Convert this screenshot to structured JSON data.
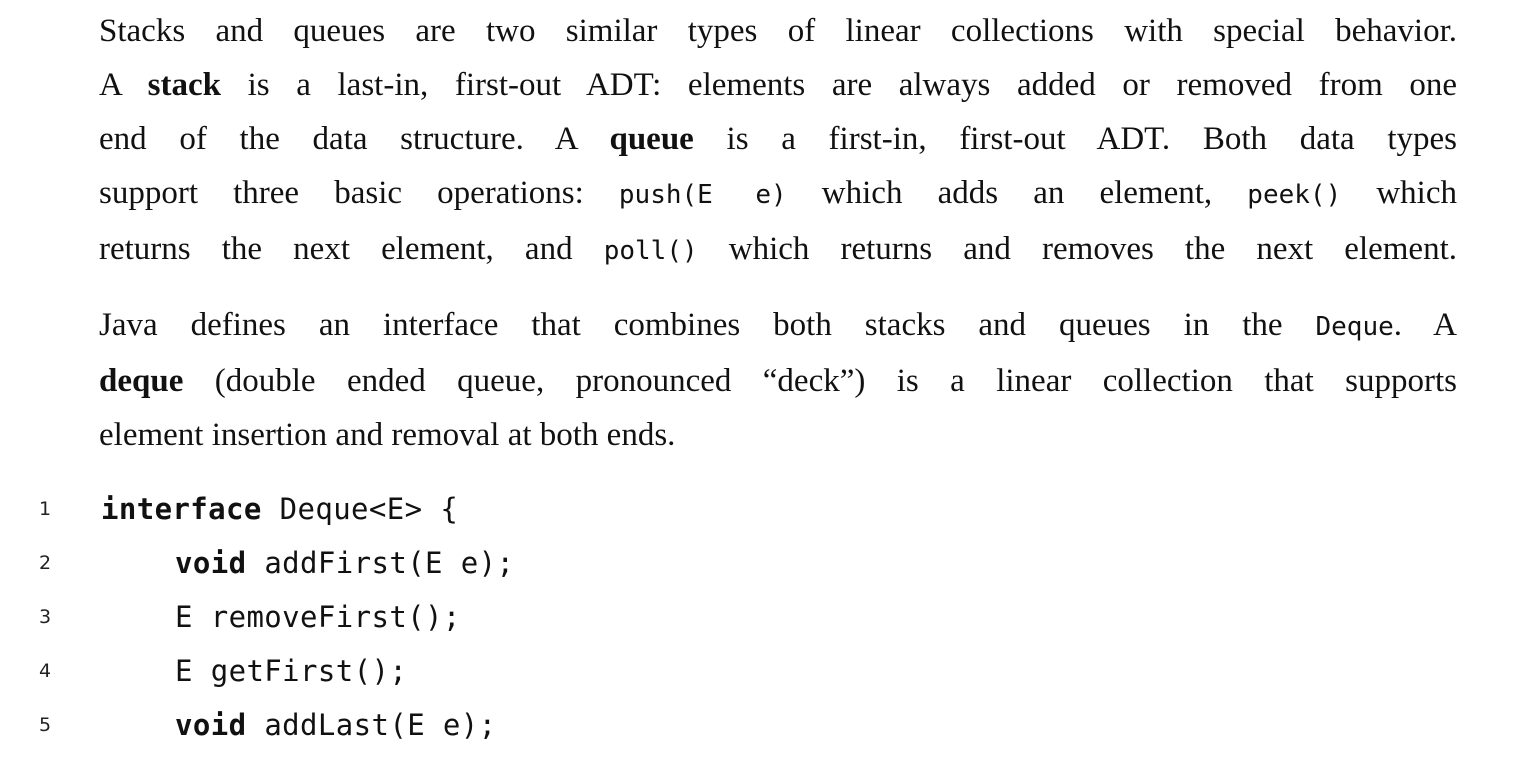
{
  "paragraph1": {
    "line1": "Stacks and queues are two similar types of linear collections with special behavior.",
    "line2_a": "A ",
    "line2_bold": "stack",
    "line2_b": " is a last-in, first-out ADT: elements are always added or removed from one",
    "line3_a": "end of the data structure.  A ",
    "line3_bold": "queue",
    "line3_b": " is a first-in, first-out ADT. Both data types",
    "line4_a": "support three basic operations: ",
    "line4_code1": "push(E e)",
    "line4_b": " which adds an element, ",
    "line4_code2": "peek()",
    "line4_c": " which",
    "line5_a": "returns the next element, and ",
    "line5_code": "poll()",
    "line5_b": " which returns and removes the next element."
  },
  "paragraph2": {
    "line1_a": "Java defines an interface that combines both stacks and queues in the ",
    "line1_code": "Deque",
    "line1_b": ".  A",
    "line2_bold": "deque",
    "line2_b": " (double ended queue, pronounced “deck”) is a linear collection that supports",
    "line3": "element insertion and removal at both ends."
  },
  "code_listing": [
    {
      "number": "1",
      "keyword": "interface",
      "rest": " Deque<E> {"
    },
    {
      "number": "2",
      "keyword": "void",
      "rest": " addFirst(E e);"
    },
    {
      "number": "3",
      "keyword": "",
      "rest": "E removeFirst();"
    },
    {
      "number": "4",
      "keyword": "",
      "rest": "E getFirst();"
    },
    {
      "number": "5",
      "keyword": "void",
      "rest": " addLast(E e);"
    }
  ]
}
